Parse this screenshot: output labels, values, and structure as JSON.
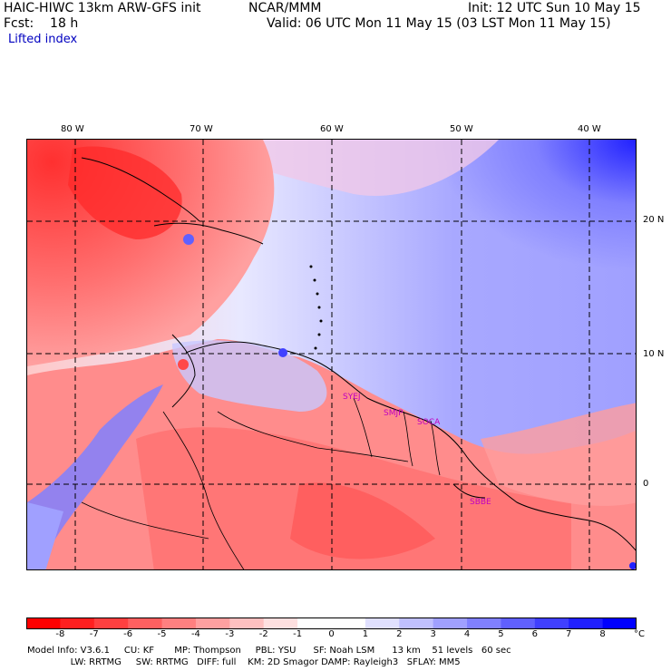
{
  "header": {
    "model": "HAIC-HIWC 13km ARW-GFS init",
    "org": "NCAR/MMM",
    "init": "Init: 12 UTC Sun 10 May 15",
    "fcst": "Fcst:    18 h",
    "valid": "Valid: 06 UTC Mon 11 May 15 (03 LST Mon 11 May 15)",
    "field": "Lifted index"
  },
  "map": {
    "lon_labels": [
      "80 W",
      "70 W",
      "60 W",
      "50 W",
      "40 W"
    ],
    "lat_labels": [
      "20 N",
      "10 N",
      "0"
    ],
    "stations": [
      "SYEJ",
      "SMJP",
      "SOCA",
      "SBBE"
    ]
  },
  "colorbar": {
    "ticks": [
      "-8",
      "-7",
      "-6",
      "-5",
      "-4",
      "-3",
      "-2",
      "-1",
      "0",
      "1",
      "2",
      "3",
      "4",
      "5",
      "6",
      "7",
      "8"
    ],
    "unit": "°C",
    "colors": [
      "#ff0000",
      "#ff2020",
      "#ff4040",
      "#ff6060",
      "#ff8080",
      "#ffa0a0",
      "#ffc0c0",
      "#ffe0e0",
      "#ffffff",
      "#e0e0ff",
      "#c0c0ff",
      "#a0a0ff",
      "#8080ff",
      "#6060ff",
      "#4040ff",
      "#2020ff",
      "#0000ff"
    ]
  },
  "footer": {
    "line1": "Model Info: V3.6.1     CU: KF       MP: Thompson     PBL: YSU      SF: Noah LSM      13 km    51 levels   60 sec",
    "line2": "               LW: RRTMG     SW: RRTMG   DIFF: full    KM: 2D Smagor DAMP: Rayleigh3   SFLAY: MM5"
  }
}
